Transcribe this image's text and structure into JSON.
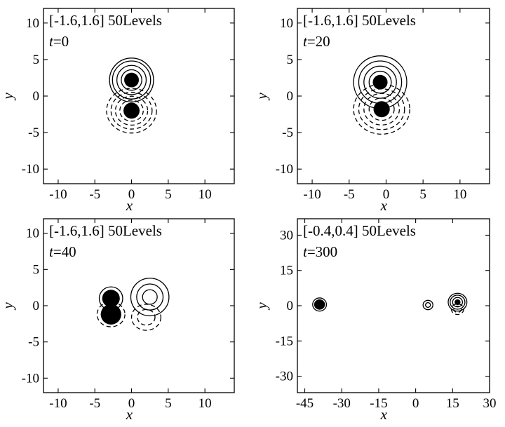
{
  "chart_data": [
    {
      "type": "contour",
      "panel": "a",
      "annotation_range": "[-1.6,1.6] 50Levels",
      "time_label": "t",
      "time_value": "=0",
      "xlabel": "x",
      "ylabel": "y",
      "xlim": [
        -12,
        14
      ],
      "ylim": [
        -12,
        12
      ],
      "xticks": [
        -10,
        -5,
        0,
        5,
        10
      ],
      "yticks": [
        -10,
        -5,
        0,
        5,
        10
      ],
      "features": [
        {
          "kind": "positive",
          "style": "solid",
          "center": [
            0,
            2.2
          ],
          "radius": 1.0,
          "rings": [
            1.4,
            2.0,
            2.6,
            3.0
          ]
        },
        {
          "kind": "negative",
          "style": "dashed",
          "center": [
            0,
            -2.0
          ],
          "radius": 1.1,
          "rings": [
            1.6,
            2.2,
            2.8,
            3.4
          ]
        }
      ]
    },
    {
      "type": "contour",
      "panel": "b",
      "annotation_range": "[-1.6,1.6] 50Levels",
      "time_label": "t",
      "time_value": "=20",
      "xlabel": "x",
      "ylabel": "y",
      "xlim": [
        -12,
        14
      ],
      "ylim": [
        -12,
        12
      ],
      "xticks": [
        -10,
        -5,
        0,
        5,
        10
      ],
      "yticks": [
        -10,
        -5,
        0,
        5,
        10
      ],
      "features": [
        {
          "kind": "positive",
          "style": "solid",
          "center": [
            -0.8,
            1.9
          ],
          "radius": 1.0,
          "rings": [
            1.5,
            2.2,
            2.9,
            3.6
          ]
        },
        {
          "kind": "negative",
          "style": "dashed",
          "center": [
            -0.6,
            -1.8
          ],
          "radius": 1.1,
          "rings": [
            1.7,
            2.4,
            3.1,
            3.8
          ]
        }
      ]
    },
    {
      "type": "contour",
      "panel": "c",
      "annotation_range": "[-1.6,1.6] 50Levels",
      "time_label": "t",
      "time_value": "=40",
      "xlabel": "x",
      "ylabel": "y",
      "xlim": [
        -12,
        14
      ],
      "ylim": [
        -12,
        12
      ],
      "xticks": [
        -10,
        -5,
        0,
        5,
        10
      ],
      "yticks": [
        -10,
        -5,
        0,
        5,
        10
      ],
      "features": [
        {
          "kind": "positive",
          "style": "solid",
          "center": [
            -2.8,
            1.0
          ],
          "radius": 1.2,
          "rings": [
            1.6
          ]
        },
        {
          "kind": "negative",
          "style": "dashed",
          "center": [
            -2.8,
            -1.2
          ],
          "radius": 1.4,
          "rings": [
            1.9
          ]
        },
        {
          "kind": "positive",
          "style": "solid",
          "center": [
            2.5,
            1.2
          ],
          "radius": 0,
          "rings": [
            1.0,
            1.8,
            2.6
          ]
        },
        {
          "kind": "negative",
          "style": "dashed",
          "center": [
            2.0,
            -1.6
          ],
          "radius": 0,
          "rings": [
            1.2,
            2.0
          ]
        }
      ]
    },
    {
      "type": "contour",
      "panel": "d",
      "annotation_range": "[-0.4,0.4] 50Levels",
      "time_label": "t",
      "time_value": "=300",
      "xlabel": "x",
      "ylabel": "y",
      "xlim": [
        -48,
        30
      ],
      "ylim": [
        -37,
        37
      ],
      "xticks": [
        -45,
        -30,
        -15,
        0,
        15,
        30
      ],
      "yticks": [
        -30,
        -15,
        0,
        15,
        30
      ],
      "features": [
        {
          "kind": "positive",
          "style": "solid",
          "center": [
            -39,
            0.5
          ],
          "radius": 2.2,
          "rings": [
            2.8
          ]
        },
        {
          "kind": "positive",
          "style": "solid",
          "center": [
            17,
            1.5
          ],
          "radius": 1.2,
          "rings": [
            2.0,
            3.0,
            3.8
          ]
        },
        {
          "kind": "negative",
          "style": "dashed",
          "center": [
            17,
            -1.5
          ],
          "radius": 0,
          "rings": [
            1.5,
            2.5
          ]
        },
        {
          "kind": "positive",
          "style": "solid",
          "center": [
            5,
            0.3
          ],
          "radius": 0,
          "rings": [
            1.0,
            2.0
          ]
        }
      ]
    }
  ]
}
